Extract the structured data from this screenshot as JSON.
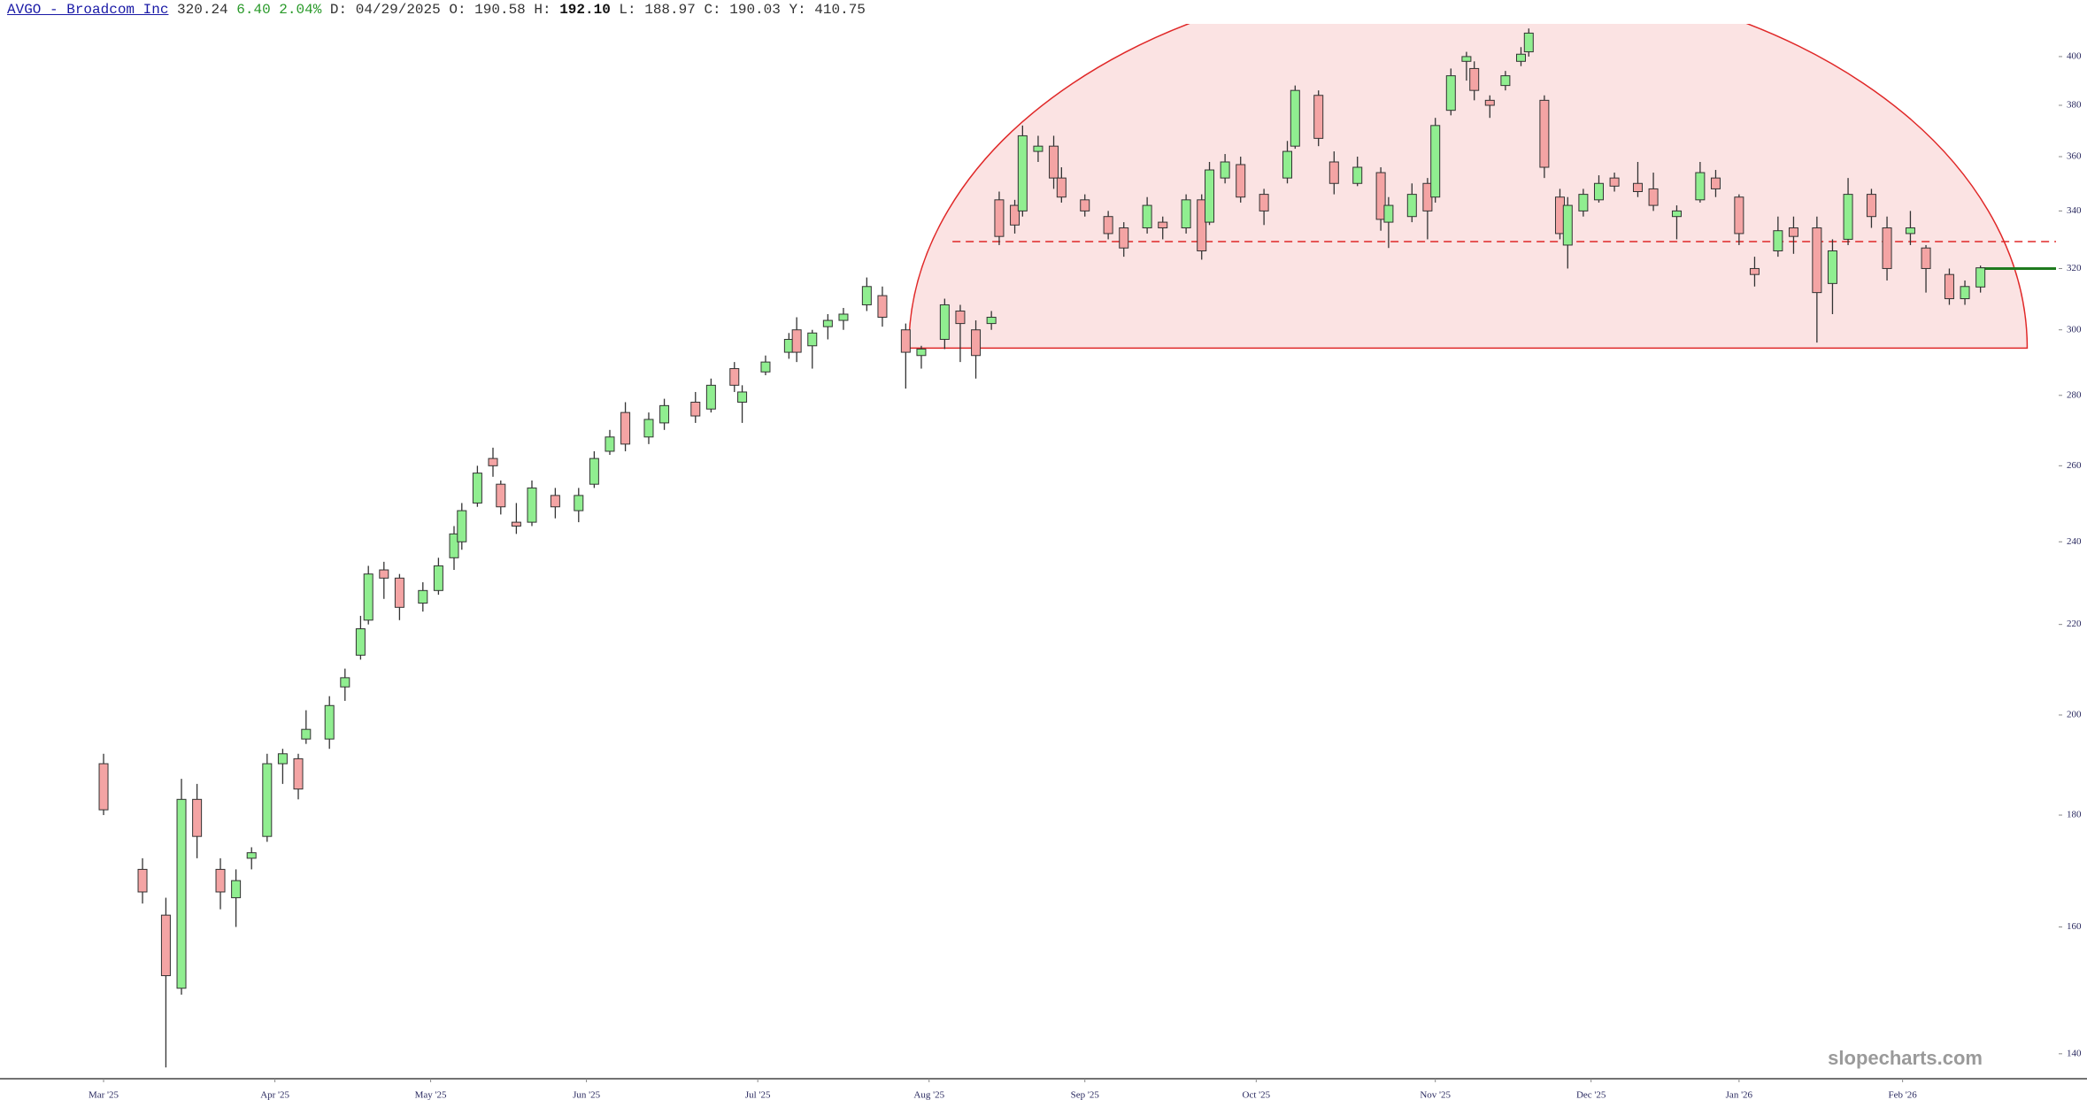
{
  "chart_data": {
    "type": "candlestick",
    "header": {
      "title": "AVGO - Broadcom Inc",
      "last": "320.24",
      "change": "6.40",
      "change_pct": "2.04%",
      "fields": [
        {
          "key": "D:",
          "text": "04/29/2025"
        },
        {
          "key": "O:",
          "text": "190.58"
        },
        {
          "key": "H:",
          "text": "192.10"
        },
        {
          "key": "L:",
          "text": "188.97"
        },
        {
          "key": "C:",
          "text": "190.03"
        },
        {
          "key": "Y:",
          "text": "410.75"
        }
      ]
    },
    "watermark": "slopecharts.com",
    "up_color": "#90ee90",
    "down_color": "#f4a4a4",
    "x": [
      0,
      5,
      8,
      10,
      12,
      15,
      17,
      19,
      21,
      23,
      25,
      26,
      29,
      31,
      33,
      34,
      36,
      38,
      41,
      43,
      45,
      46,
      48,
      50,
      51,
      53,
      55,
      58,
      61,
      63,
      65,
      67,
      70,
      72,
      76,
      78,
      81,
      82,
      85,
      88,
      89,
      91,
      93,
      95,
      98,
      100,
      103,
      105,
      108,
      110,
      112,
      114,
      115,
      117,
      118,
      120,
      122,
      123,
      126,
      129,
      131,
      134,
      136,
      139,
      141,
      142,
      144,
      146,
      149,
      152,
      153,
      156,
      158,
      161,
      164,
      165,
      168,
      170,
      171,
      173,
      175,
      176,
      178,
      180,
      182,
      183,
      185,
      187,
      188,
      190,
      192,
      194,
      197,
      199,
      202,
      205,
      207,
      210,
      212,
      215,
      217,
      220,
      222,
      224,
      227,
      229,
      232,
      234,
      237,
      239,
      241
    ],
    "open": [
      190,
      170,
      162,
      150,
      183,
      170,
      165,
      172,
      176,
      190,
      191,
      195,
      195,
      206,
      213,
      221,
      233,
      231,
      225,
      228,
      236,
      240,
      250,
      262,
      255,
      245,
      245,
      252,
      248,
      255,
      264,
      275,
      268,
      272,
      278,
      276,
      288,
      278,
      287,
      293,
      300,
      295,
      301,
      303,
      308,
      311,
      300,
      292,
      297,
      306,
      300,
      302,
      344,
      342,
      340,
      362,
      364,
      352,
      344,
      338,
      334,
      334,
      336,
      334,
      344,
      336,
      352,
      357,
      346,
      352,
      364,
      384,
      358,
      350,
      354,
      336,
      338,
      350,
      345,
      378,
      398,
      395,
      382,
      388,
      398,
      402,
      382,
      345,
      328,
      340,
      344,
      352,
      350,
      348,
      338,
      344,
      352,
      345,
      320,
      326,
      334,
      334,
      315,
      330,
      346,
      334,
      332,
      327,
      318,
      310,
      313.84
    ],
    "high": [
      192,
      172,
      165,
      187,
      186,
      172,
      170,
      174,
      192,
      193,
      192,
      201,
      204,
      210,
      222,
      234,
      235,
      232,
      230,
      236,
      244,
      250,
      260,
      265,
      256,
      250,
      256,
      254,
      254,
      264,
      270,
      278,
      275,
      279,
      281,
      285,
      290,
      283,
      292,
      299,
      304,
      300,
      305,
      307,
      317,
      314,
      302,
      295,
      310,
      308,
      303,
      306,
      347,
      344,
      372,
      368,
      368,
      356,
      346,
      340,
      336,
      345,
      338,
      346,
      346,
      358,
      361,
      360,
      348,
      366,
      388,
      386,
      362,
      360,
      356,
      345,
      350,
      352,
      375,
      395,
      402,
      398,
      384,
      394,
      404,
      412,
      384,
      348,
      345,
      348,
      353,
      354,
      358,
      354,
      342,
      358,
      355,
      346,
      324,
      338,
      338,
      338,
      330,
      352,
      348,
      338,
      340,
      328,
      320,
      316,
      321
    ],
    "low": [
      180,
      164,
      138,
      149,
      172,
      163,
      160,
      170,
      175,
      186,
      183,
      194,
      193,
      203,
      212,
      220,
      226,
      221,
      223,
      227,
      233,
      238,
      249,
      257,
      247,
      242,
      244,
      246,
      245,
      254,
      263,
      264,
      266,
      270,
      272,
      275,
      281,
      272,
      286,
      291,
      290,
      288,
      297,
      300,
      306,
      301,
      282,
      288,
      294,
      290,
      285,
      300,
      328,
      332,
      338,
      358,
      348,
      343,
      338,
      330,
      324,
      332,
      330,
      332,
      323,
      335,
      350,
      343,
      335,
      350,
      363,
      364,
      346,
      349,
      333,
      327,
      336,
      330,
      343,
      376,
      390,
      382,
      375,
      386,
      396,
      400,
      352,
      330,
      320,
      338,
      343,
      347,
      345,
      340,
      330,
      343,
      345,
      328,
      314,
      324,
      325,
      296,
      305,
      328,
      334,
      316,
      328,
      312,
      308,
      308,
      312
    ],
    "close": [
      181,
      166,
      152,
      183,
      176,
      166,
      168,
      173,
      190,
      192,
      185,
      197,
      202,
      208,
      219,
      232,
      231,
      224,
      228,
      234,
      242,
      248,
      258,
      260,
      249,
      244,
      254,
      249,
      252,
      262,
      268,
      266,
      273,
      277,
      274,
      283,
      283,
      281,
      290,
      297,
      293,
      299,
      303,
      305,
      314,
      304,
      293,
      294,
      308,
      302,
      292,
      304,
      331,
      335,
      368,
      364,
      352,
      345,
      340,
      332,
      327,
      342,
      334,
      344,
      326,
      355,
      358,
      345,
      340,
      362,
      386,
      367,
      350,
      356,
      337,
      342,
      346,
      340,
      372,
      392,
      400,
      386,
      380,
      392,
      401,
      410,
      356,
      332,
      342,
      346,
      350,
      349,
      347,
      342,
      340,
      354,
      348,
      332,
      318,
      333,
      331,
      312,
      326,
      346,
      338,
      320,
      334,
      320,
      310,
      314,
      320.24
    ],
    "xlim": [
      -13.3,
      250.7
    ],
    "xticks": [
      {
        "value": 0,
        "label": "Mar '25"
      },
      {
        "value": 22,
        "label": "Apr '25"
      },
      {
        "value": 42,
        "label": "May '25"
      },
      {
        "value": 62,
        "label": "Jun '25"
      },
      {
        "value": 84,
        "label": "Jul '25"
      },
      {
        "value": 106,
        "label": "Aug '25"
      },
      {
        "value": 126,
        "label": "Sep '25"
      },
      {
        "value": 148,
        "label": "Oct '25"
      },
      {
        "value": 171,
        "label": "Nov '25"
      },
      {
        "value": 191,
        "label": "Dec '25"
      },
      {
        "value": 210,
        "label": "Jan '26"
      },
      {
        "value": 231,
        "label": "Feb '26"
      }
    ],
    "ylim": [
      136.5,
      414
    ],
    "log_scale": true,
    "yticks": [
      140,
      160,
      180,
      200,
      220,
      240,
      260,
      280,
      300,
      320,
      340,
      360,
      380,
      400
    ],
    "shapes": [
      {
        "type": "half-ellipse",
        "x": [
          103.4,
          247
        ],
        "base": 294.3,
        "color": "#e02828"
      }
    ],
    "hlines": [
      {
        "value": 329.2,
        "from": 109,
        "color": "#e02828",
        "dash": true
      },
      {
        "value": 320,
        "from": 241,
        "color": "#1e7a1e",
        "dash": false
      }
    ]
  }
}
